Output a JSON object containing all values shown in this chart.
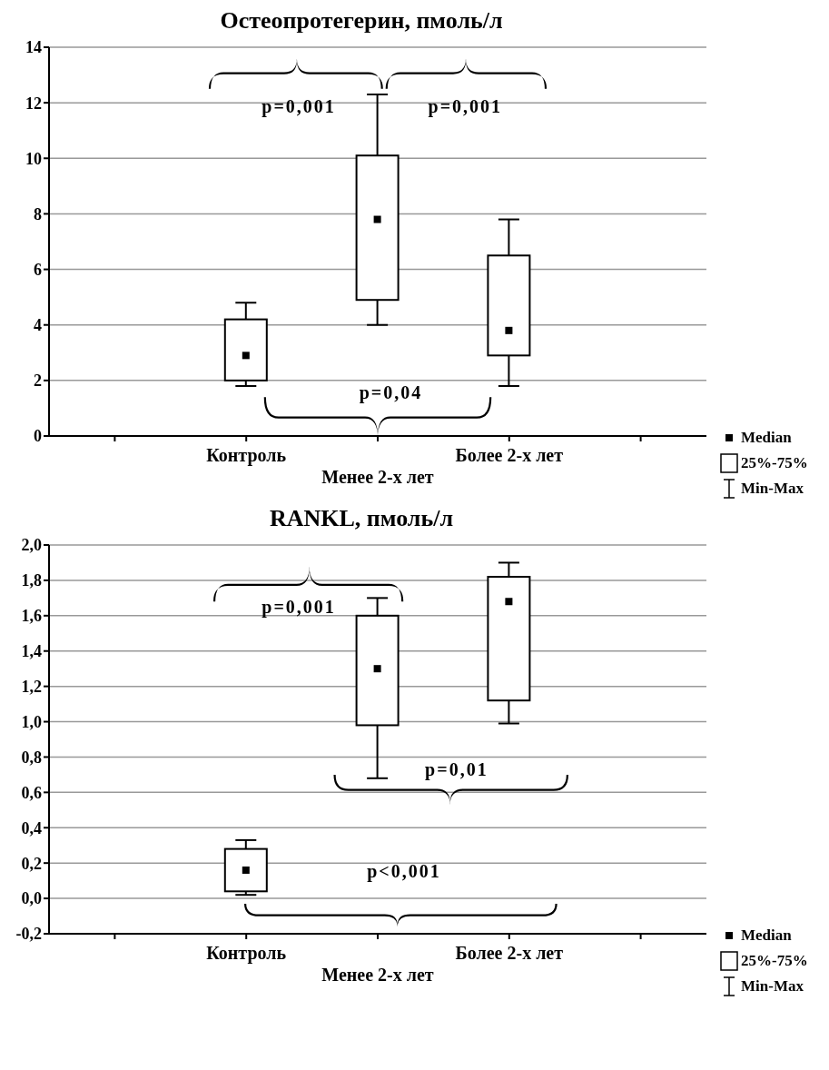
{
  "chart_data": [
    {
      "type": "box",
      "title": "Остеопротегерин, пмоль/л",
      "categories": [
        null,
        "Контроль",
        "Менее 2-х лет",
        "Более 2-х лет",
        null
      ],
      "boxes": [
        null,
        {
          "low": 1.8,
          "q1": 2.0,
          "median": 2.9,
          "q3": 4.2,
          "high": 4.8
        },
        {
          "low": 4.0,
          "q1": 4.9,
          "median": 7.8,
          "q3": 10.1,
          "high": 12.3
        },
        {
          "low": 1.8,
          "q1": 2.9,
          "median": 3.8,
          "q3": 6.5,
          "high": 7.8
        },
        null
      ],
      "ylim": [
        0,
        14
      ],
      "yticks": [
        0,
        2,
        4,
        6,
        8,
        10,
        12,
        14
      ],
      "grid": "y",
      "annotations": [
        "p=0,001",
        "p=0,001",
        "p=0,04",
        "Median",
        "25%-75%",
        "Min-Max"
      ]
    },
    {
      "type": "box",
      "title": "RANKL, пмоль/л",
      "categories": [
        null,
        "Контроль",
        "Менее 2-х лет",
        "Более 2-х лет",
        null
      ],
      "boxes": [
        null,
        {
          "low": 0.02,
          "q1": 0.04,
          "median": 0.16,
          "q3": 0.28,
          "high": 0.33
        },
        {
          "low": 0.68,
          "q1": 0.98,
          "median": 1.3,
          "q3": 1.6,
          "high": 1.7
        },
        {
          "low": 0.99,
          "q1": 1.12,
          "median": 1.68,
          "q3": 1.82,
          "high": 1.9
        },
        null
      ],
      "ylim": [
        -0.2,
        2.0
      ],
      "yticks": [
        {
          "value": -0.2,
          "label": "-0,2"
        },
        {
          "value": 0,
          "label": "0,0"
        },
        {
          "value": 0.2,
          "label": "0,2"
        },
        {
          "value": 0.4,
          "label": "0,4"
        },
        {
          "value": 0.6,
          "label": "0,6"
        },
        {
          "value": 0.8,
          "label": "0,8"
        },
        {
          "value": 1.0,
          "label": "1,0"
        },
        {
          "value": 1.2,
          "label": "1,2"
        },
        {
          "value": 1.4,
          "label": "1,4"
        },
        {
          "value": 1.6,
          "label": "1,6"
        },
        {
          "value": 1.8,
          "label": "1,8"
        },
        {
          "value": 2.0,
          "label": "2,0"
        }
      ],
      "grid": "y",
      "annotations": [
        "p=0,001",
        "p=0,01",
        "p<0,001",
        "Median",
        "25%-75%",
        "Min-Max"
      ]
    }
  ]
}
